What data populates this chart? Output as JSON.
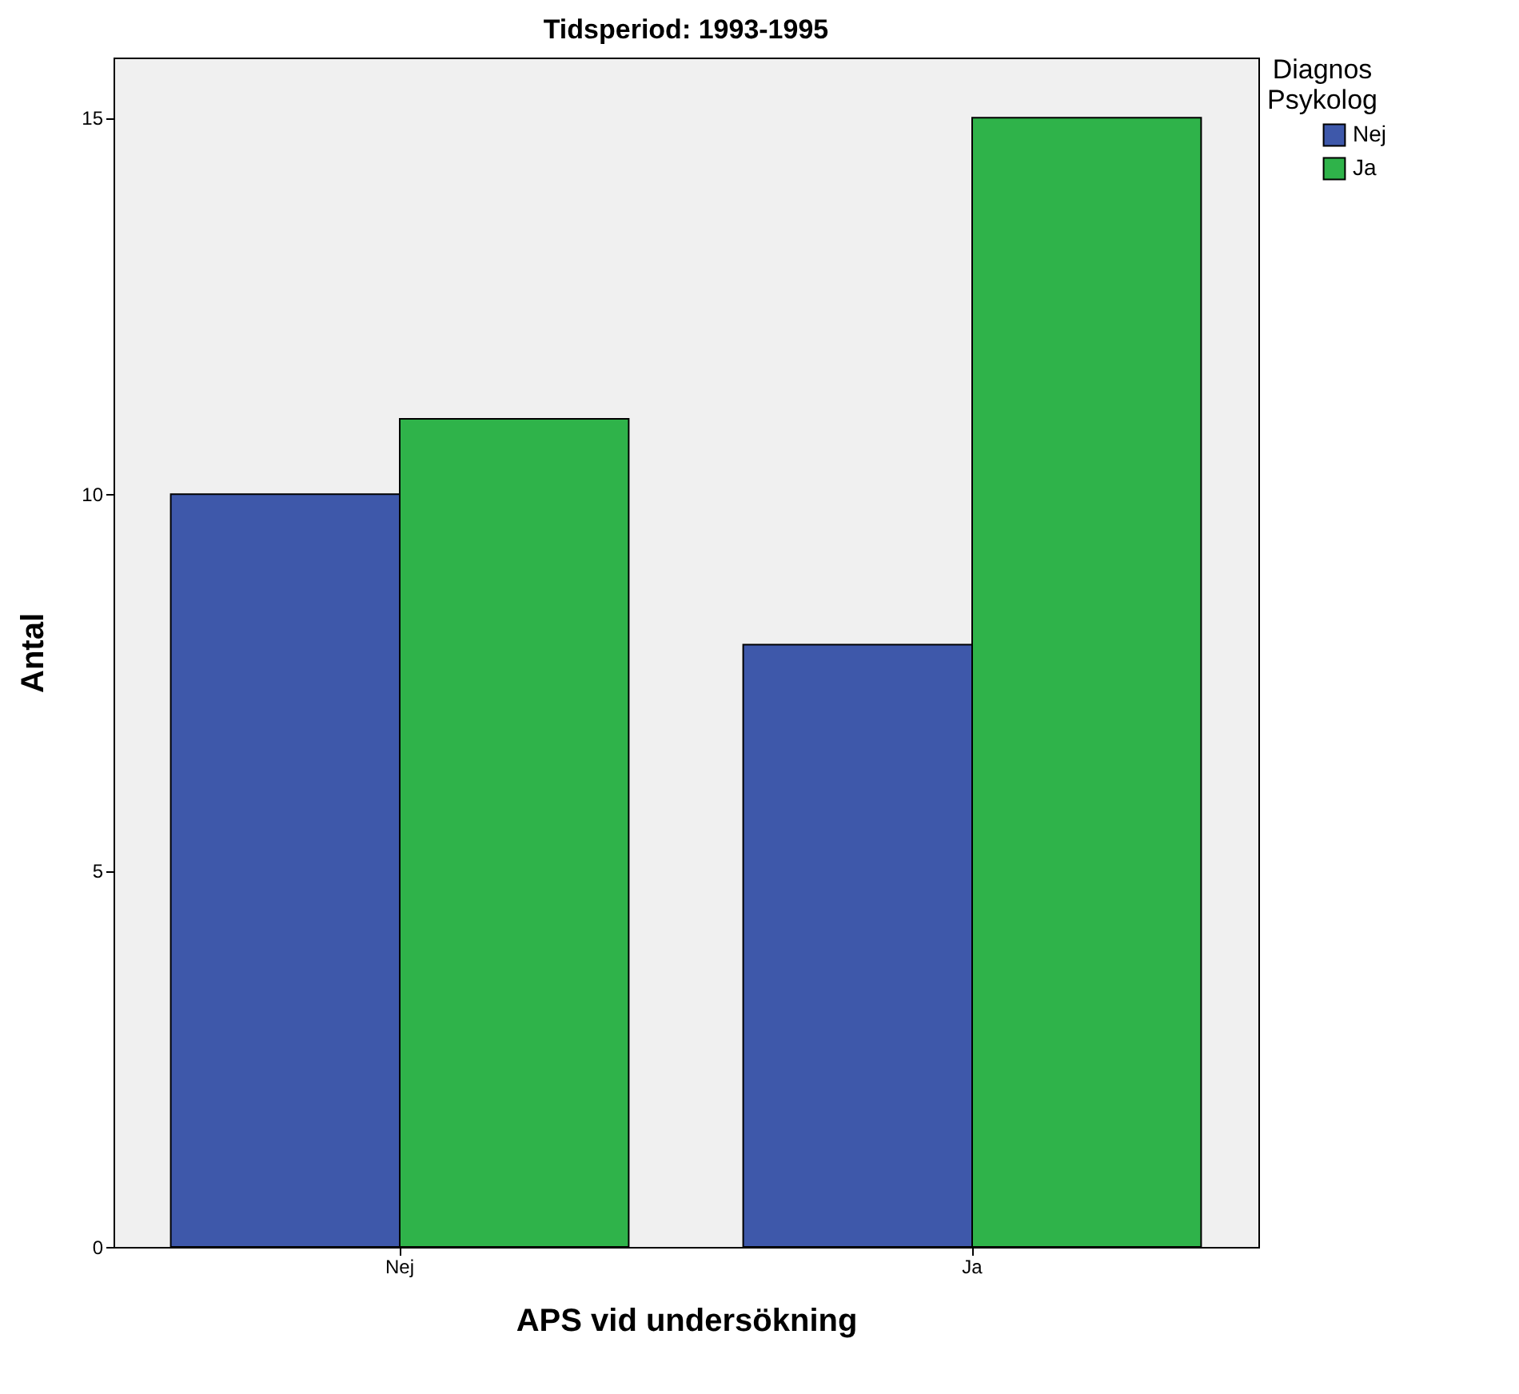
{
  "chart_data": {
    "type": "bar",
    "title": "Tidsperiod: 1993-1995",
    "xlabel": "APS vid undersökning",
    "ylabel": "Antal",
    "legend_title": "Diagnos Psykolog",
    "categories": [
      "Nej",
      "Ja"
    ],
    "series": [
      {
        "name": "Nej",
        "color": "#3e58aa",
        "values": [
          10,
          8
        ]
      },
      {
        "name": "Ja",
        "color": "#2fb34a",
        "values": [
          11,
          15
        ]
      }
    ],
    "ylim": [
      0,
      15.8
    ],
    "yticks": [
      0,
      5,
      10,
      15
    ],
    "grid": false,
    "legend": "top right"
  }
}
